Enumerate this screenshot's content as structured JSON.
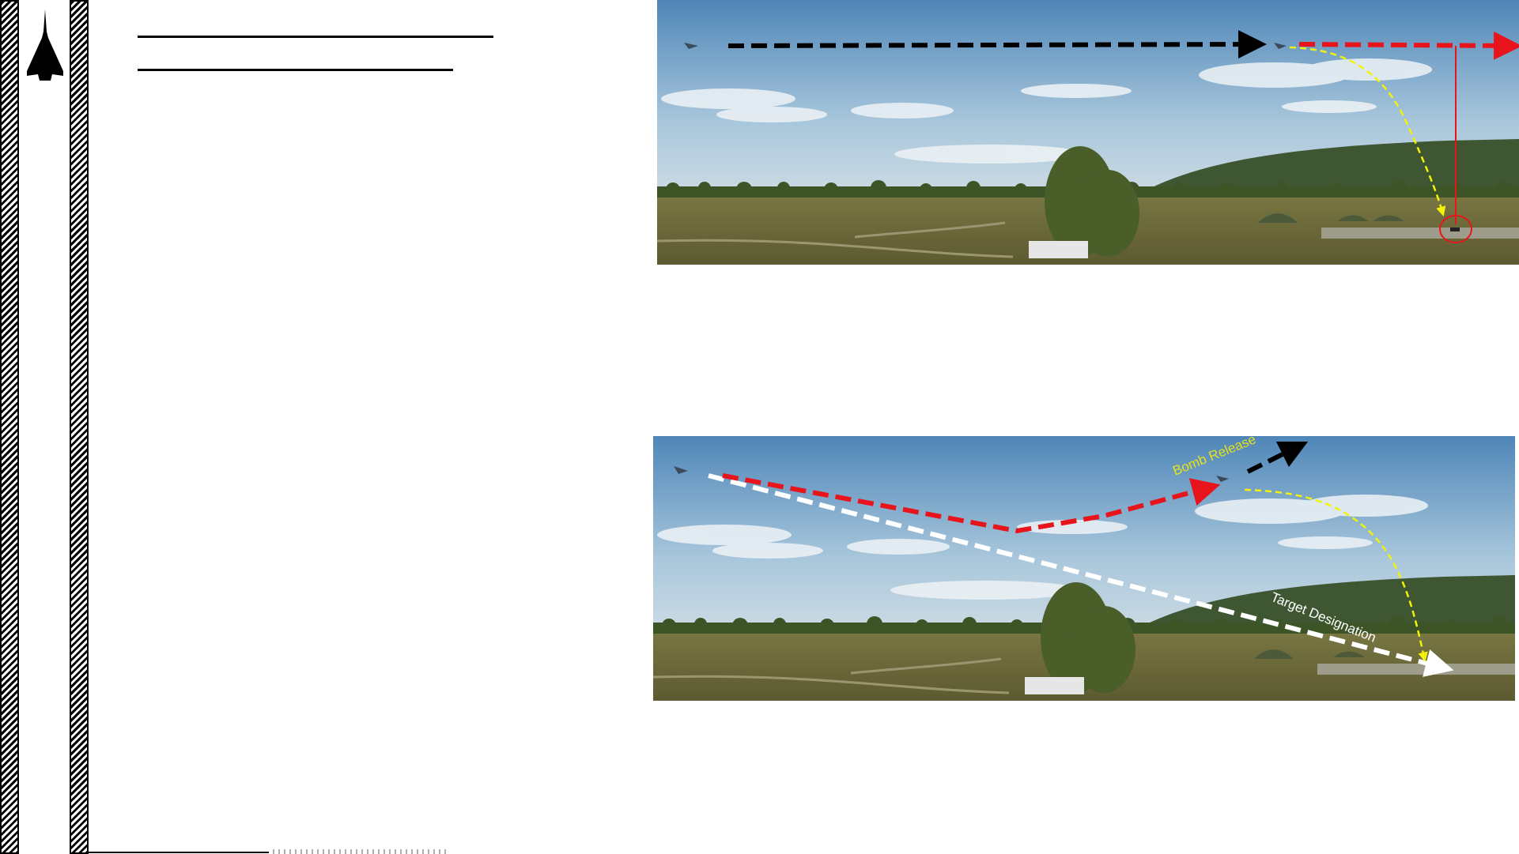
{
  "page": {
    "heading_text": "",
    "icon": "delta-wing-jet-icon"
  },
  "diagram_bottom": {
    "bomb_release_label": "Bomb Release",
    "target_designation_label": "Target Designation"
  },
  "colors": {
    "level_path": "#000000",
    "release_path": "#e8141b",
    "bomb_trajectory": "#f2f20a",
    "designation_line": "#ffffff",
    "target_marker": "#e8141b",
    "sky_top": "#4f86b8",
    "sky_bottom": "#b9d2e2",
    "ground": "#6d6a3a"
  }
}
